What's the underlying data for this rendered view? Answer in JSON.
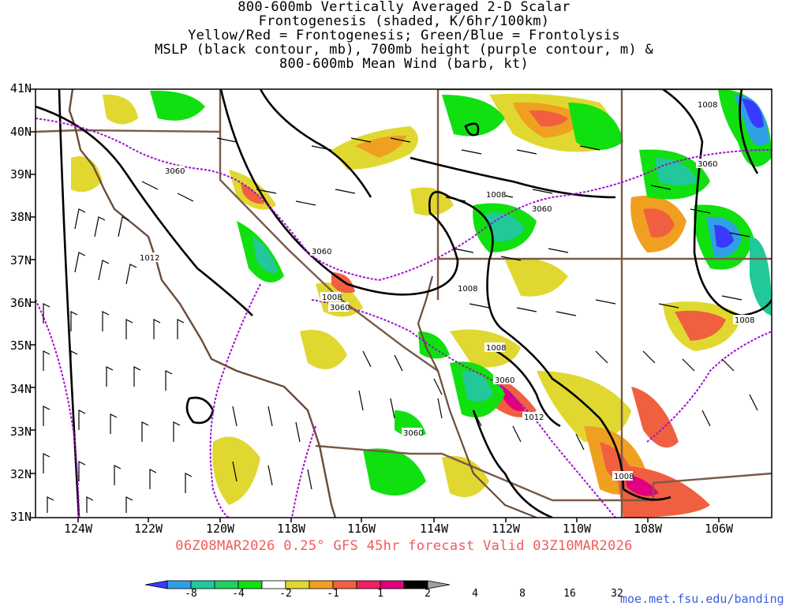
{
  "title_lines": [
    "800-600mb Vertically Averaged 2-D Scalar",
    "Frontogenesis (shaded, K/6hr/100km)",
    "Yellow/Red = Frontogenesis;  Green/Blue = Frontolysis",
    "MSLP (black contour, mb), 700mb height (purple contour, m) &",
    "800-600mb Mean Wind (barb, kt)"
  ],
  "lat_labels": [
    "41N",
    "40N",
    "39N",
    "38N",
    "37N",
    "36N",
    "35N",
    "34N",
    "33N",
    "32N",
    "31N"
  ],
  "lon_labels": [
    "124W",
    "122W",
    "120W",
    "118W",
    "116W",
    "114W",
    "112W",
    "110W",
    "108W",
    "106W"
  ],
  "valid_text": "06Z08MAR2026 0.25° GFS 45hr forecast Valid 03Z10MAR2026",
  "colorbar": {
    "labels": [
      "-8",
      "-4",
      "-2",
      "-1",
      "1",
      "2",
      "4",
      "8",
      "16",
      "32"
    ],
    "colors": [
      "#3a3aff",
      "#2fa0e6",
      "#22c89a",
      "#20d060",
      "#10e010",
      "#ffffff",
      "#e0d830",
      "#f0a020",
      "#f06040",
      "#f02060",
      "#e00080",
      "#000000",
      "#a0a0a0"
    ]
  },
  "contour_labels": {
    "mslp": [
      "1012",
      "1008",
      "1008",
      "1008",
      "1008",
      "1008",
      "1012",
      "1008",
      "1008"
    ],
    "height": [
      "3060",
      "3060",
      "3060",
      "3060",
      "3060",
      "3060",
      "3060"
    ]
  },
  "colors": {
    "mslp": "#000000",
    "height": "#a010d0",
    "borders": "#7a5a48",
    "coast": "#6b4a3a",
    "valid_text": "#f25a5a",
    "url": "#3b5de0"
  },
  "url": "moe.met.fsu.edu/banding"
}
